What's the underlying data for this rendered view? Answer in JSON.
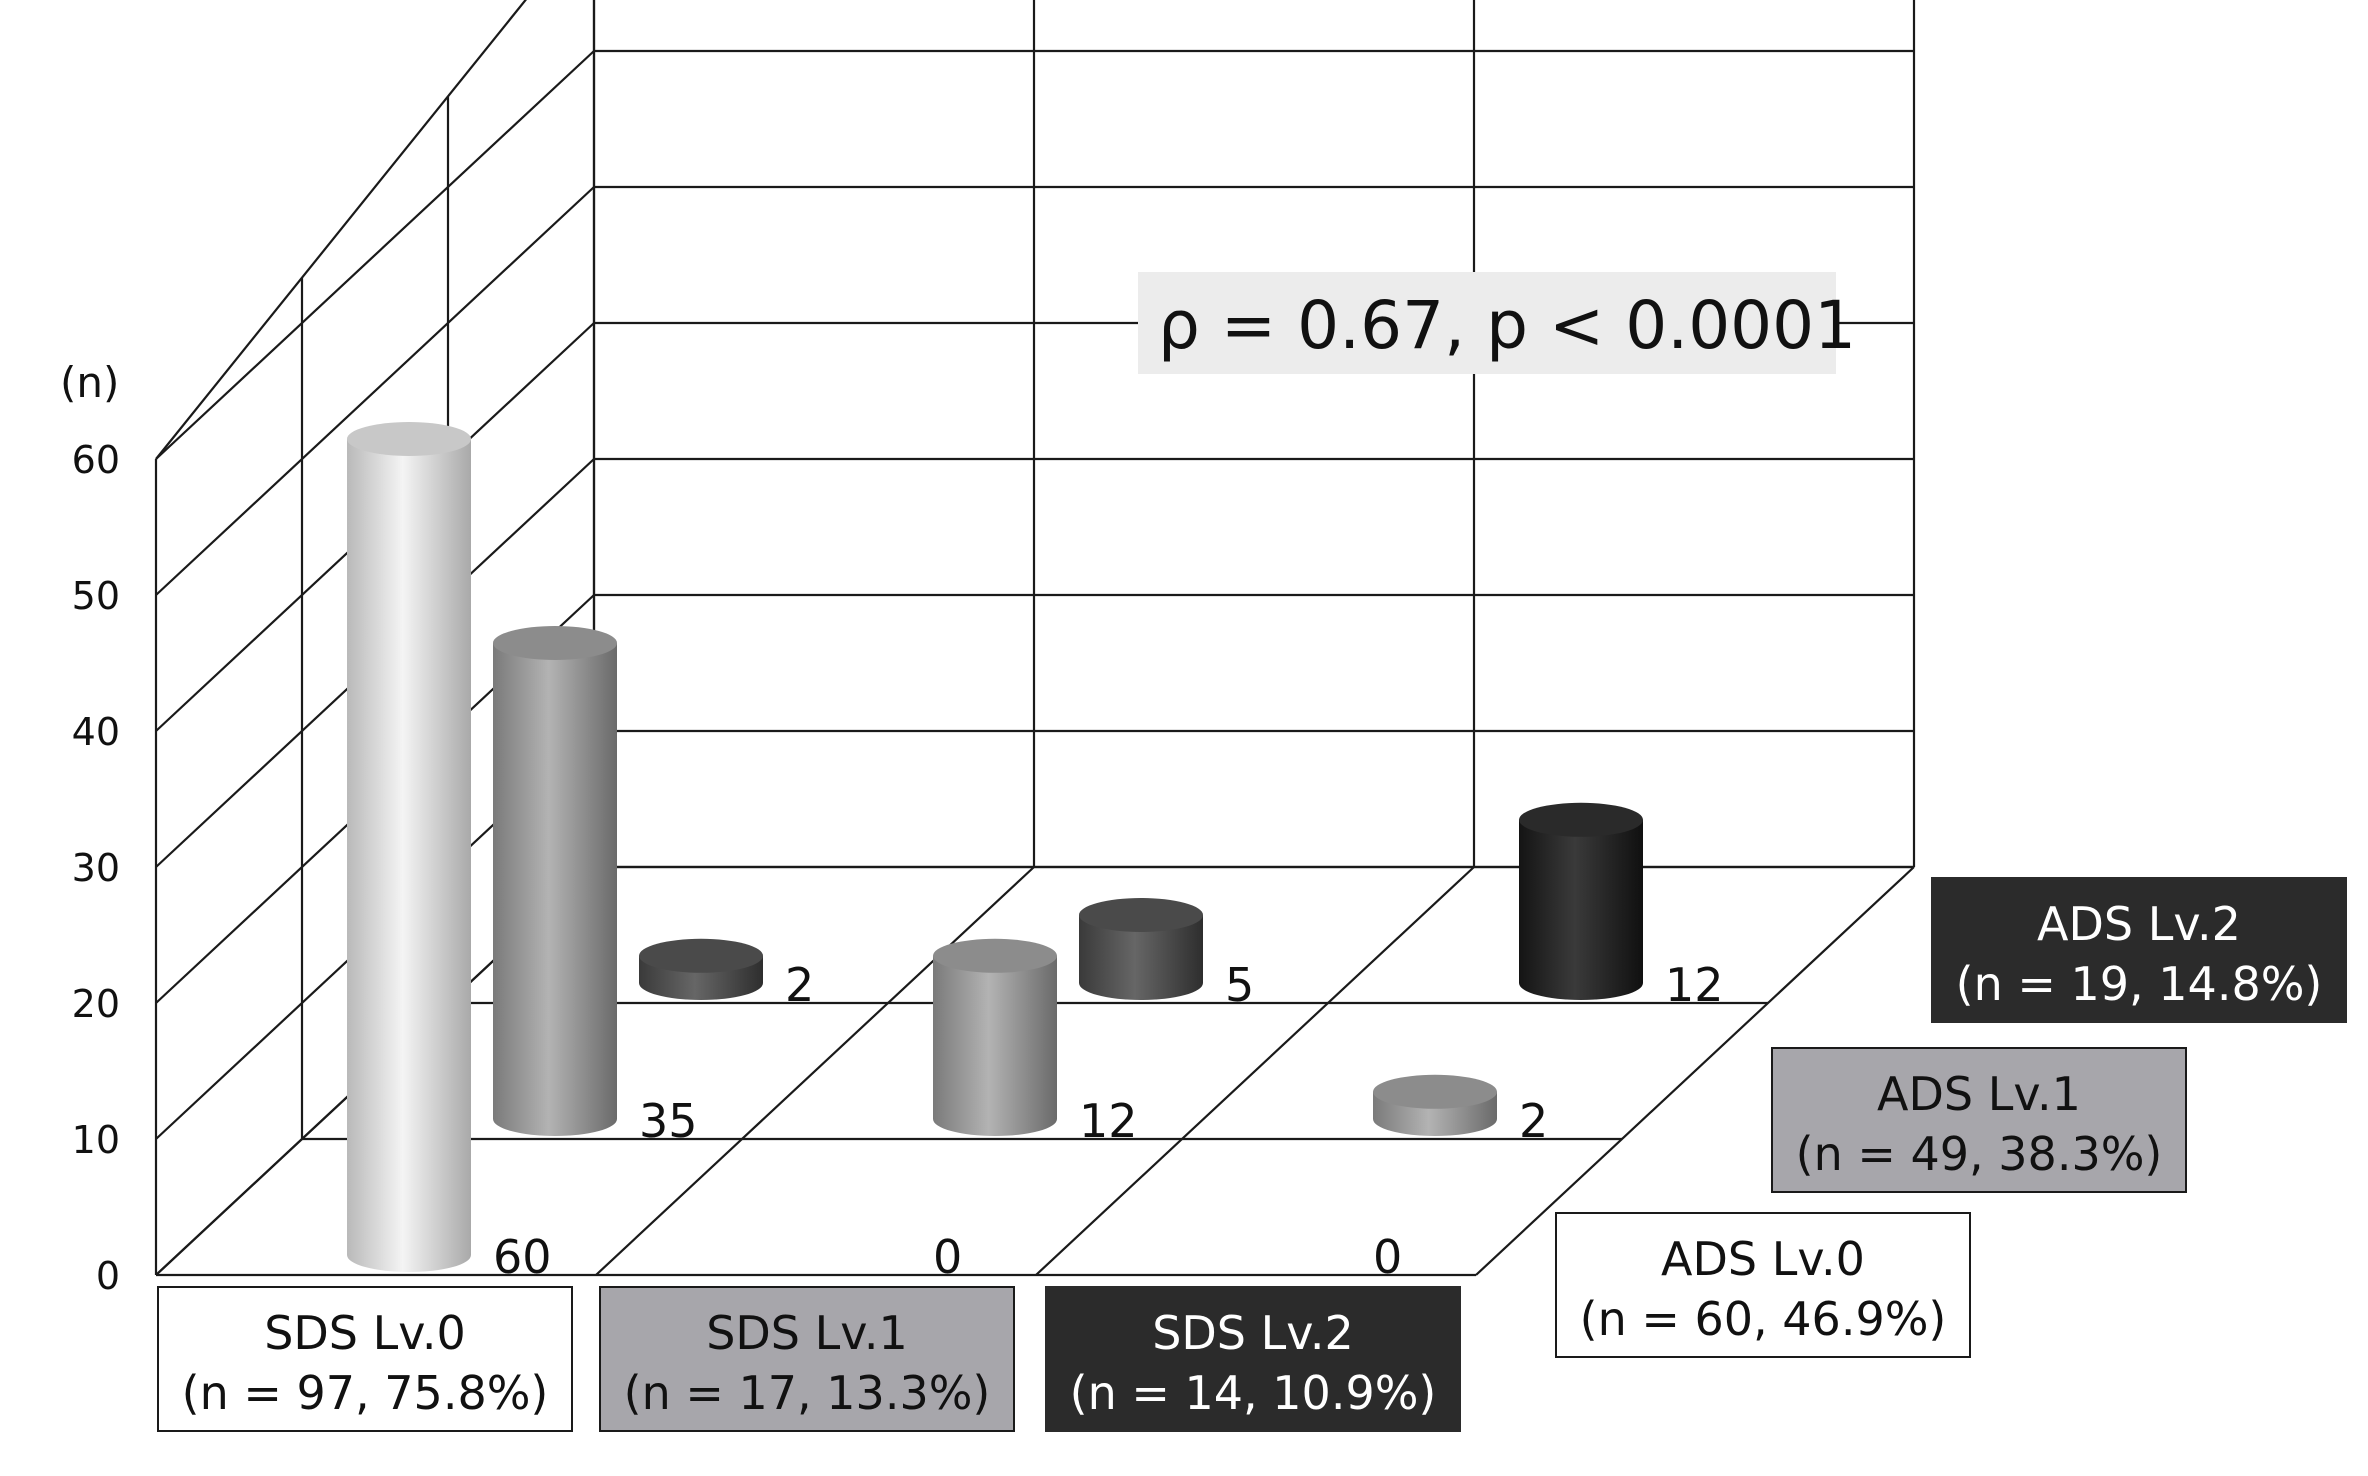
{
  "chart_data": {
    "type": "bar",
    "title": "",
    "ylabel": "(n)",
    "ylim": [
      0,
      60
    ],
    "yticks": [
      "0",
      "10",
      "20",
      "30",
      "40",
      "50",
      "60"
    ],
    "grid": true,
    "annotation": "ρ = 0.67, p < 0.0001",
    "x_categories": [
      {
        "name": "SDS Lv.0",
        "detail": "(n = 97, 75.8%)",
        "color": "#ffffff"
      },
      {
        "name": "SDS Lv.1",
        "detail": "(n = 17, 13.3%)",
        "color": "#a7a6ab"
      },
      {
        "name": "SDS Lv.2",
        "detail": "(n = 14, 10.9%)",
        "color": "#2b2b2b"
      }
    ],
    "depth_categories": [
      {
        "name": "ADS Lv.0",
        "detail": "(n = 60, 46.9%)",
        "color": "#ffffff"
      },
      {
        "name": "ADS Lv.1",
        "detail": "(n = 49, 38.3%)",
        "color": "#a7a6ab"
      },
      {
        "name": "ADS Lv.2",
        "detail": "(n = 19, 14.8%)",
        "color": "#2b2b2b"
      }
    ],
    "series": [
      {
        "name": "ADS Lv.0",
        "values": [
          60,
          0,
          0
        ]
      },
      {
        "name": "ADS Lv.1",
        "values": [
          35,
          12,
          2
        ]
      },
      {
        "name": "ADS Lv.2",
        "values": [
          2,
          5,
          12
        ]
      }
    ],
    "value_labels": [
      [
        "60",
        "0",
        "0"
      ],
      [
        "35",
        "12",
        "2"
      ],
      [
        "2",
        "5",
        "12"
      ]
    ]
  }
}
